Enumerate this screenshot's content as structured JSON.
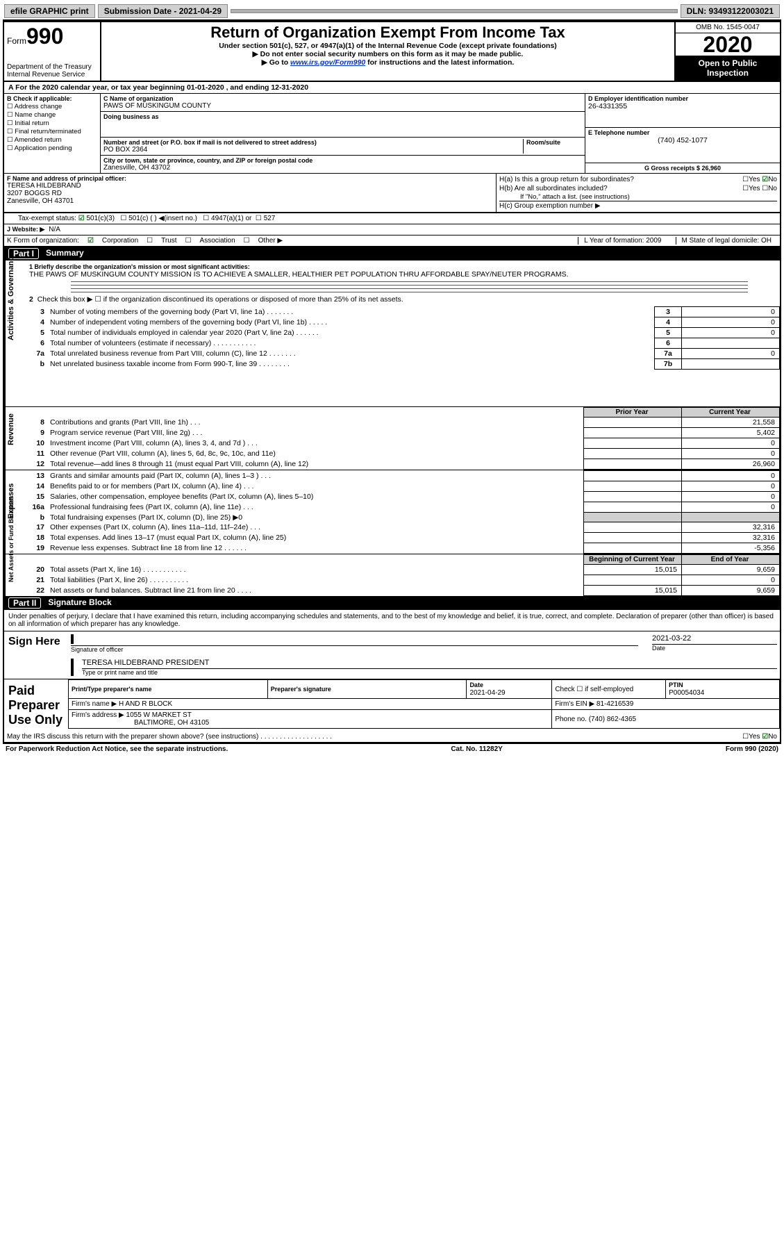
{
  "toolbar": {
    "efile": "efile GRAPHIC print",
    "submission_label": "Submission Date - 2021-04-29",
    "dln_label": "DLN: 93493122003021"
  },
  "header": {
    "form_prefix": "Form",
    "form_number": "990",
    "dept1": "Department of the Treasury",
    "dept2": "Internal Revenue Service",
    "title": "Return of Organization Exempt From Income Tax",
    "subtitle": "Under section 501(c), 527, or 4947(a)(1) of the Internal Revenue Code (except private foundations)",
    "note1": "▶ Do not enter social security numbers on this form as it may be made public.",
    "note2_pre": "▶ Go to ",
    "note2_link": "www.irs.gov/Form990",
    "note2_post": " for instructions and the latest information.",
    "omb": "OMB No. 1545-0047",
    "year": "2020",
    "open_public": "Open to Public Inspection"
  },
  "lineA": "A For the 2020 calendar year, or tax year beginning 01-01-2020     , and ending 12-31-2020",
  "boxB": {
    "label": "B Check if applicable:",
    "items": [
      "Address change",
      "Name change",
      "Initial return",
      "Final return/terminated",
      "Amended return",
      "Application pending"
    ]
  },
  "boxC": {
    "name_label": "C Name of organization",
    "name": "PAWS OF MUSKINGUM COUNTY",
    "dba_label": "Doing business as",
    "addr_label": "Number and street (or P.O. box if mail is not delivered to street address)",
    "room_label": "Room/suite",
    "addr": "PO BOX 2364",
    "city_label": "City or town, state or province, country, and ZIP or foreign postal code",
    "city": "Zanesville, OH  43702"
  },
  "boxDE": {
    "d_label": "D Employer identification number",
    "ein": "26-4331355",
    "e_label": "E Telephone number",
    "phone": "(740) 452-1077",
    "g_label": "G Gross receipts $ 26,960"
  },
  "boxF": {
    "label": "F  Name and address of principal officer:",
    "name": "TERESA HILDEBRAND",
    "addr1": "3207 BOGGS RD",
    "addr2": "Zanesville, OH  43701"
  },
  "boxH": {
    "ha": "H(a)  Is this a group return for subordinates?",
    "hb": "H(b)  Are all subordinates included?",
    "hb_note": "If \"No,\" attach a list. (see instructions)",
    "hc": "H(c)  Group exemption number ▶",
    "yes": "Yes",
    "no": "No"
  },
  "taxExempt": {
    "label": "Tax-exempt status:",
    "c3": "501(c)(3)",
    "cx": "501(c) (   ) ◀(insert no.)",
    "a1": "4947(a)(1) or",
    "527": "527"
  },
  "lineJ": {
    "label": "J   Website: ▶",
    "value": "N/A"
  },
  "lineK": {
    "label": "K Form of organization:",
    "corp": "Corporation",
    "trust": "Trust",
    "assoc": "Association",
    "other": "Other ▶",
    "l_label": "L Year of formation: 2009",
    "m_label": "M State of legal domicile: OH"
  },
  "part1": {
    "title": "Part I",
    "name": "Summary",
    "q1_label": "1  Briefly describe the organization's mission or most significant activities:",
    "q1_text": "THE PAWS OF MUSKINGUM COUNTY MISSION IS TO ACHIEVE A SMALLER, HEALTHIER PET POPULATION THRU AFFORDABLE SPAY/NEUTER PROGRAMS.",
    "q2": "Check this box ▶ ☐  if the organization discontinued its operations or disposed of more than 25% of its net assets.",
    "rows_gov": [
      {
        "n": "3",
        "d": "Number of voting members of the governing body (Part VI, line 1a)  .   .   .   .   .   .   .",
        "c": "3",
        "v": "0"
      },
      {
        "n": "4",
        "d": "Number of independent voting members of the governing body (Part VI, line 1b)  .   .   .   .   .",
        "c": "4",
        "v": "0"
      },
      {
        "n": "5",
        "d": "Total number of individuals employed in calendar year 2020 (Part V, line 2a)  .   .   .   .   .   .",
        "c": "5",
        "v": "0"
      },
      {
        "n": "6",
        "d": "Total number of volunteers (estimate if necessary)    .   .   .   .   .   .   .   .   .   .   .",
        "c": "6",
        "v": ""
      },
      {
        "n": "7a",
        "d": "Total unrelated business revenue from Part VIII, column (C), line 12  .   .   .   .   .   .   .",
        "c": "7a",
        "v": "0"
      },
      {
        "n": "b",
        "d": "Net unrelated business taxable income from Form 990-T, line 39   .   .   .   .   .   .   .   .",
        "c": "7b",
        "v": ""
      }
    ],
    "py_label": "Prior Year",
    "cy_label": "Current Year",
    "revenue_rows": [
      {
        "n": "8",
        "d": "Contributions and grants (Part VIII, line 1h)   .   .   .",
        "py": "",
        "cy": "21,558"
      },
      {
        "n": "9",
        "d": "Program service revenue (Part VIII, line 2g)   .   .   .",
        "py": "",
        "cy": "5,402"
      },
      {
        "n": "10",
        "d": "Investment income (Part VIII, column (A), lines 3, 4, and 7d )   .   .   .",
        "py": "",
        "cy": "0"
      },
      {
        "n": "11",
        "d": "Other revenue (Part VIII, column (A), lines 5, 6d, 8c, 9c, 10c, and 11e)",
        "py": "",
        "cy": "0"
      },
      {
        "n": "12",
        "d": "Total revenue—add lines 8 through 11 (must equal Part VIII, column (A), line 12)",
        "py": "",
        "cy": "26,960"
      }
    ],
    "expense_rows": [
      {
        "n": "13",
        "d": "Grants and similar amounts paid (Part IX, column (A), lines 1–3 )  .   .   .",
        "py": "",
        "cy": "0"
      },
      {
        "n": "14",
        "d": "Benefits paid to or for members (Part IX, column (A), line 4)  .   .   .",
        "py": "",
        "cy": "0"
      },
      {
        "n": "15",
        "d": "Salaries, other compensation, employee benefits (Part IX, column (A), lines 5–10)",
        "py": "",
        "cy": "0"
      },
      {
        "n": "16a",
        "d": "Professional fundraising fees (Part IX, column (A), line 11e)  .   .   .",
        "py": "",
        "cy": "0"
      },
      {
        "n": "b",
        "d": "Total fundraising expenses (Part IX, column (D), line 25) ▶0",
        "py": "shade",
        "cy": "shade"
      },
      {
        "n": "17",
        "d": "Other expenses (Part IX, column (A), lines 11a–11d, 11f–24e)  .   .   .",
        "py": "",
        "cy": "32,316"
      },
      {
        "n": "18",
        "d": "Total expenses. Add lines 13–17 (must equal Part IX, column (A), line 25)",
        "py": "",
        "cy": "32,316"
      },
      {
        "n": "19",
        "d": "Revenue less expenses. Subtract line 18 from line 12  .   .   .   .   .   .",
        "py": "",
        "cy": "-5,356"
      }
    ],
    "boy_label": "Beginning of Current Year",
    "eoy_label": "End of Year",
    "net_rows": [
      {
        "n": "20",
        "d": "Total assets (Part X, line 16)  .   .   .   .   .   .   .   .   .   .   .",
        "py": "15,015",
        "cy": "9,659"
      },
      {
        "n": "21",
        "d": "Total liabilities (Part X, line 26)  .   .   .   .   .   .   .   .   .   .",
        "py": "",
        "cy": "0"
      },
      {
        "n": "22",
        "d": "Net assets or fund balances. Subtract line 21 from line 20  .   .   .   .",
        "py": "15,015",
        "cy": "9,659"
      }
    ],
    "vtab_gov": "Activities & Governance",
    "vtab_rev": "Revenue",
    "vtab_exp": "Expenses",
    "vtab_net": "Net Assets or Fund Balances"
  },
  "part2": {
    "title": "Part II",
    "name": "Signature Block",
    "decl": "Under penalties of perjury, I declare that I have examined this return, including accompanying schedules and statements, and to the best of my knowledge and belief, it is true, correct, and complete. Declaration of preparer (other than officer) is based on all information of which preparer has any knowledge.",
    "sign_here": "Sign Here",
    "sig_officer": "Signature of officer",
    "date_label": "Date",
    "sig_date": "2021-03-22",
    "officer_name": "TERESA HILDEBRAND PRESIDENT",
    "type_name": "Type or print name and title",
    "paid_prep": "Paid Preparer Use Only",
    "prep_name_lbl": "Print/Type preparer's name",
    "prep_sig_lbl": "Preparer's signature",
    "prep_date_lbl": "Date",
    "prep_date": "2021-04-29",
    "check_self": "Check ☐  if self-employed",
    "ptin_lbl": "PTIN",
    "ptin": "P00054034",
    "firm_name_lbl": "Firm's name    ▶",
    "firm_name": "H AND R BLOCK",
    "firm_ein_lbl": "Firm's EIN ▶",
    "firm_ein": "81-4216539",
    "firm_addr_lbl": "Firm's address ▶",
    "firm_addr1": "1055 W MARKET ST",
    "firm_addr2": "BALTIMORE, OH  43105",
    "phone_lbl": "Phone no.",
    "phone": "(740) 862-4365",
    "discuss": "May the IRS discuss this return with the preparer shown above? (see instructions)   .   .   .   .   .   .   .   .   .   .   .   .   .   .   .   .   .   .   ."
  },
  "footer": {
    "pra": "For Paperwork Reduction Act Notice, see the separate instructions.",
    "cat": "Cat. No. 11282Y",
    "form": "Form 990 (2020)"
  }
}
